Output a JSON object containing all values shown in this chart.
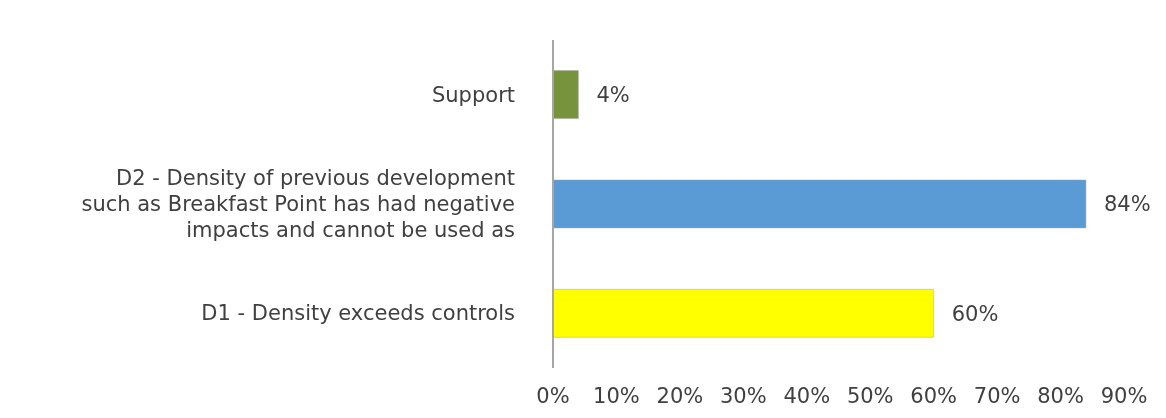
{
  "chart_data": {
    "type": "bar",
    "orientation": "horizontal",
    "categories": [
      "Support",
      "D2 - Density of previous development such as Breakfast Point has had negative impacts and cannot be used as",
      "D1 - Density exceeds controls"
    ],
    "values": [
      4,
      84,
      60
    ],
    "colors": [
      "#77933c",
      "#5b9bd5",
      "#ffff00"
    ],
    "value_labels": [
      "4%",
      "84%",
      "60%"
    ],
    "xlim": [
      0,
      90
    ],
    "xticks": [
      {
        "value": 0,
        "label": "0%"
      },
      {
        "value": 10,
        "label": "10%"
      },
      {
        "value": 20,
        "label": "20%"
      },
      {
        "value": 30,
        "label": "30%"
      },
      {
        "value": 40,
        "label": "40%"
      },
      {
        "value": 50,
        "label": "50%"
      },
      {
        "value": 60,
        "label": "60%"
      },
      {
        "value": 70,
        "label": "70%"
      },
      {
        "value": 80,
        "label": "80%"
      },
      {
        "value": 90,
        "label": "90%"
      }
    ],
    "grid": false
  }
}
